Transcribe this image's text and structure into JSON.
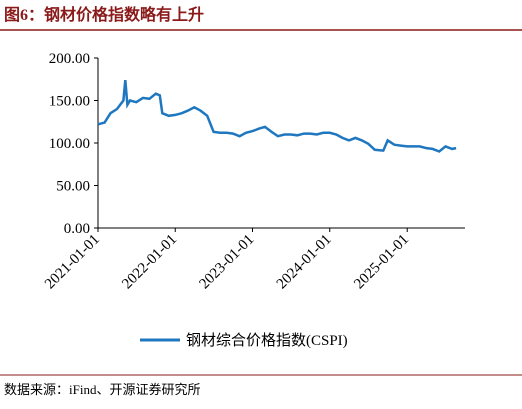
{
  "chart_data": {
    "type": "line",
    "title": "图6：钢材价格指数略有上升",
    "source": "数据来源：iFind、开源证券研究所",
    "x": [
      "2021-01-01",
      "2021-02-01",
      "2021-03-01",
      "2021-04-01",
      "2021-05-01",
      "2021-05-10",
      "2021-05-20",
      "2021-06-01",
      "2021-07-01",
      "2021-08-01",
      "2021-09-01",
      "2021-10-01",
      "2021-10-20",
      "2021-11-01",
      "2021-12-01",
      "2022-01-01",
      "2022-02-01",
      "2022-03-01",
      "2022-04-01",
      "2022-05-01",
      "2022-06-01",
      "2022-07-01",
      "2022-08-01",
      "2022-09-01",
      "2022-10-01",
      "2022-11-01",
      "2022-12-01",
      "2023-01-01",
      "2023-02-01",
      "2023-03-01",
      "2023-04-01",
      "2023-05-01",
      "2023-06-01",
      "2023-07-01",
      "2023-08-01",
      "2023-09-01",
      "2023-10-01",
      "2023-11-01",
      "2023-12-01",
      "2024-01-01",
      "2024-02-01",
      "2024-03-01",
      "2024-04-01",
      "2024-05-01",
      "2024-06-01",
      "2024-07-01",
      "2024-08-01",
      "2024-09-10",
      "2024-10-01",
      "2024-11-01",
      "2024-12-01",
      "2025-01-01",
      "2025-02-01",
      "2025-03-01",
      "2025-04-01",
      "2025-05-01",
      "2025-06-01",
      "2025-07-01",
      "2025-08-01",
      "2025-08-20"
    ],
    "series": [
      {
        "name": "钢材综合价格指数(CSPI)",
        "color": "#1f77c0",
        "values": [
          122,
          124,
          135,
          140,
          150,
          174,
          145,
          150,
          148,
          153,
          152,
          158,
          156,
          135,
          132,
          133,
          135,
          138,
          142,
          138,
          132,
          113,
          112,
          112,
          111,
          108,
          112,
          114,
          117,
          119,
          113,
          108,
          110,
          110,
          109,
          111,
          111,
          110,
          112,
          112,
          110,
          106,
          103,
          106,
          103,
          99,
          92,
          91,
          103,
          98,
          97,
          96,
          96,
          96,
          94,
          93,
          90,
          96,
          93,
          94
        ]
      }
    ],
    "xlim": [
      "2021-01-01",
      "2025-10-01"
    ],
    "xticks": [
      "2021-01-01",
      "2022-01-01",
      "2023-01-01",
      "2024-01-01",
      "2025-01-01"
    ],
    "ylim": [
      0,
      200
    ],
    "yticks": [
      {
        "value": 0,
        "label": "0.00"
      },
      {
        "value": 50,
        "label": "50.00"
      },
      {
        "value": 100,
        "label": "100.00"
      },
      {
        "value": 150,
        "label": "150.00"
      },
      {
        "value": 200,
        "label": "200.00"
      }
    ],
    "grid": false,
    "legend": "bottom"
  }
}
